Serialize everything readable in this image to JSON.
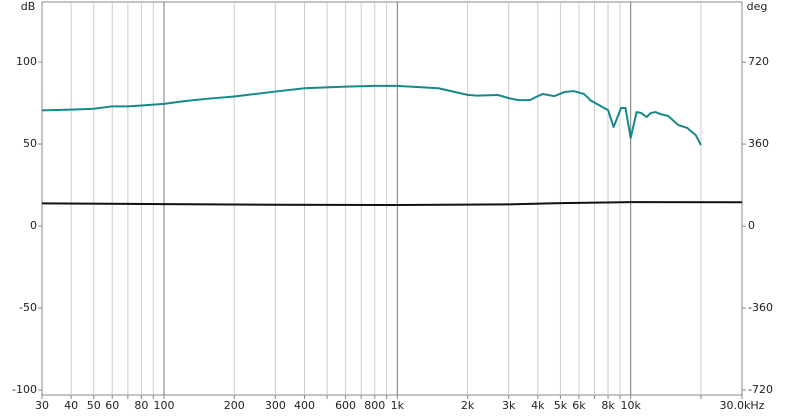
{
  "chart_data": {
    "type": "line",
    "y_unit": "dB",
    "y2_unit": "deg",
    "xscale": "log",
    "xlim": [
      30,
      30000
    ],
    "ylim": [
      -103,
      136.6
    ],
    "y2lim": [
      -742,
      984
    ],
    "xticks": [
      30,
      40,
      50,
      60,
      80,
      100,
      200,
      300,
      400,
      600,
      800,
      {
        "value": 1000,
        "label": "1k"
      },
      {
        "value": 2000,
        "label": "2k"
      },
      {
        "value": 3000,
        "label": "3k"
      },
      {
        "value": 4000,
        "label": "4k"
      },
      {
        "value": 5000,
        "label": "5k"
      },
      {
        "value": 6000,
        "label": "6k"
      },
      {
        "value": 8000,
        "label": "8k"
      },
      {
        "value": 10000,
        "label": "10k"
      },
      {
        "value": 30000,
        "label": "30.0kHz"
      }
    ],
    "x_minor_ticks": [
      70,
      90,
      500,
      700,
      900,
      7000,
      9000,
      20000
    ],
    "yticks": [
      -100,
      -50,
      0,
      50,
      100
    ],
    "y2ticks": [
      -720,
      -360,
      0,
      360,
      720
    ],
    "grid": true,
    "series": [
      {
        "color": "#16898a",
        "x": [
          30,
          40,
          50,
          60,
          70,
          80,
          100,
          120,
          150,
          200,
          300,
          400,
          600,
          800,
          1000,
          1500,
          2000,
          2200,
          2700,
          3000,
          3300,
          3700,
          4000,
          4200,
          4700,
          5200,
          5700,
          6300,
          6600,
          6700,
          7300,
          8000,
          8450,
          9100,
          9500,
          10000,
          10600,
          11100,
          11700,
          12200,
          12800,
          13400,
          14500,
          15300,
          16000,
          17500,
          18100,
          19000,
          20000
        ],
        "values": [
          70.5,
          71,
          71.5,
          73,
          73,
          73.5,
          74.5,
          76,
          77.5,
          79,
          82,
          84,
          85,
          85.5,
          85.5,
          84,
          80,
          79.5,
          79.9,
          78,
          76.8,
          76.8,
          79.2,
          80.5,
          79.2,
          81.7,
          82.3,
          80.5,
          78,
          76.8,
          73.8,
          70.7,
          60.4,
          72,
          72,
          53.7,
          69.5,
          68.9,
          66.5,
          68.9,
          69.5,
          68.3,
          67.1,
          64,
          61.6,
          59.8,
          57.9,
          55.5,
          49.4
        ]
      },
      {
        "color": "#111111",
        "x": [
          30,
          100,
          300,
          1000,
          3000,
          5000,
          10000,
          30000
        ],
        "values": [
          13.8,
          13.4,
          13,
          12.8,
          13.2,
          14,
          14.6,
          14.5
        ]
      }
    ]
  }
}
